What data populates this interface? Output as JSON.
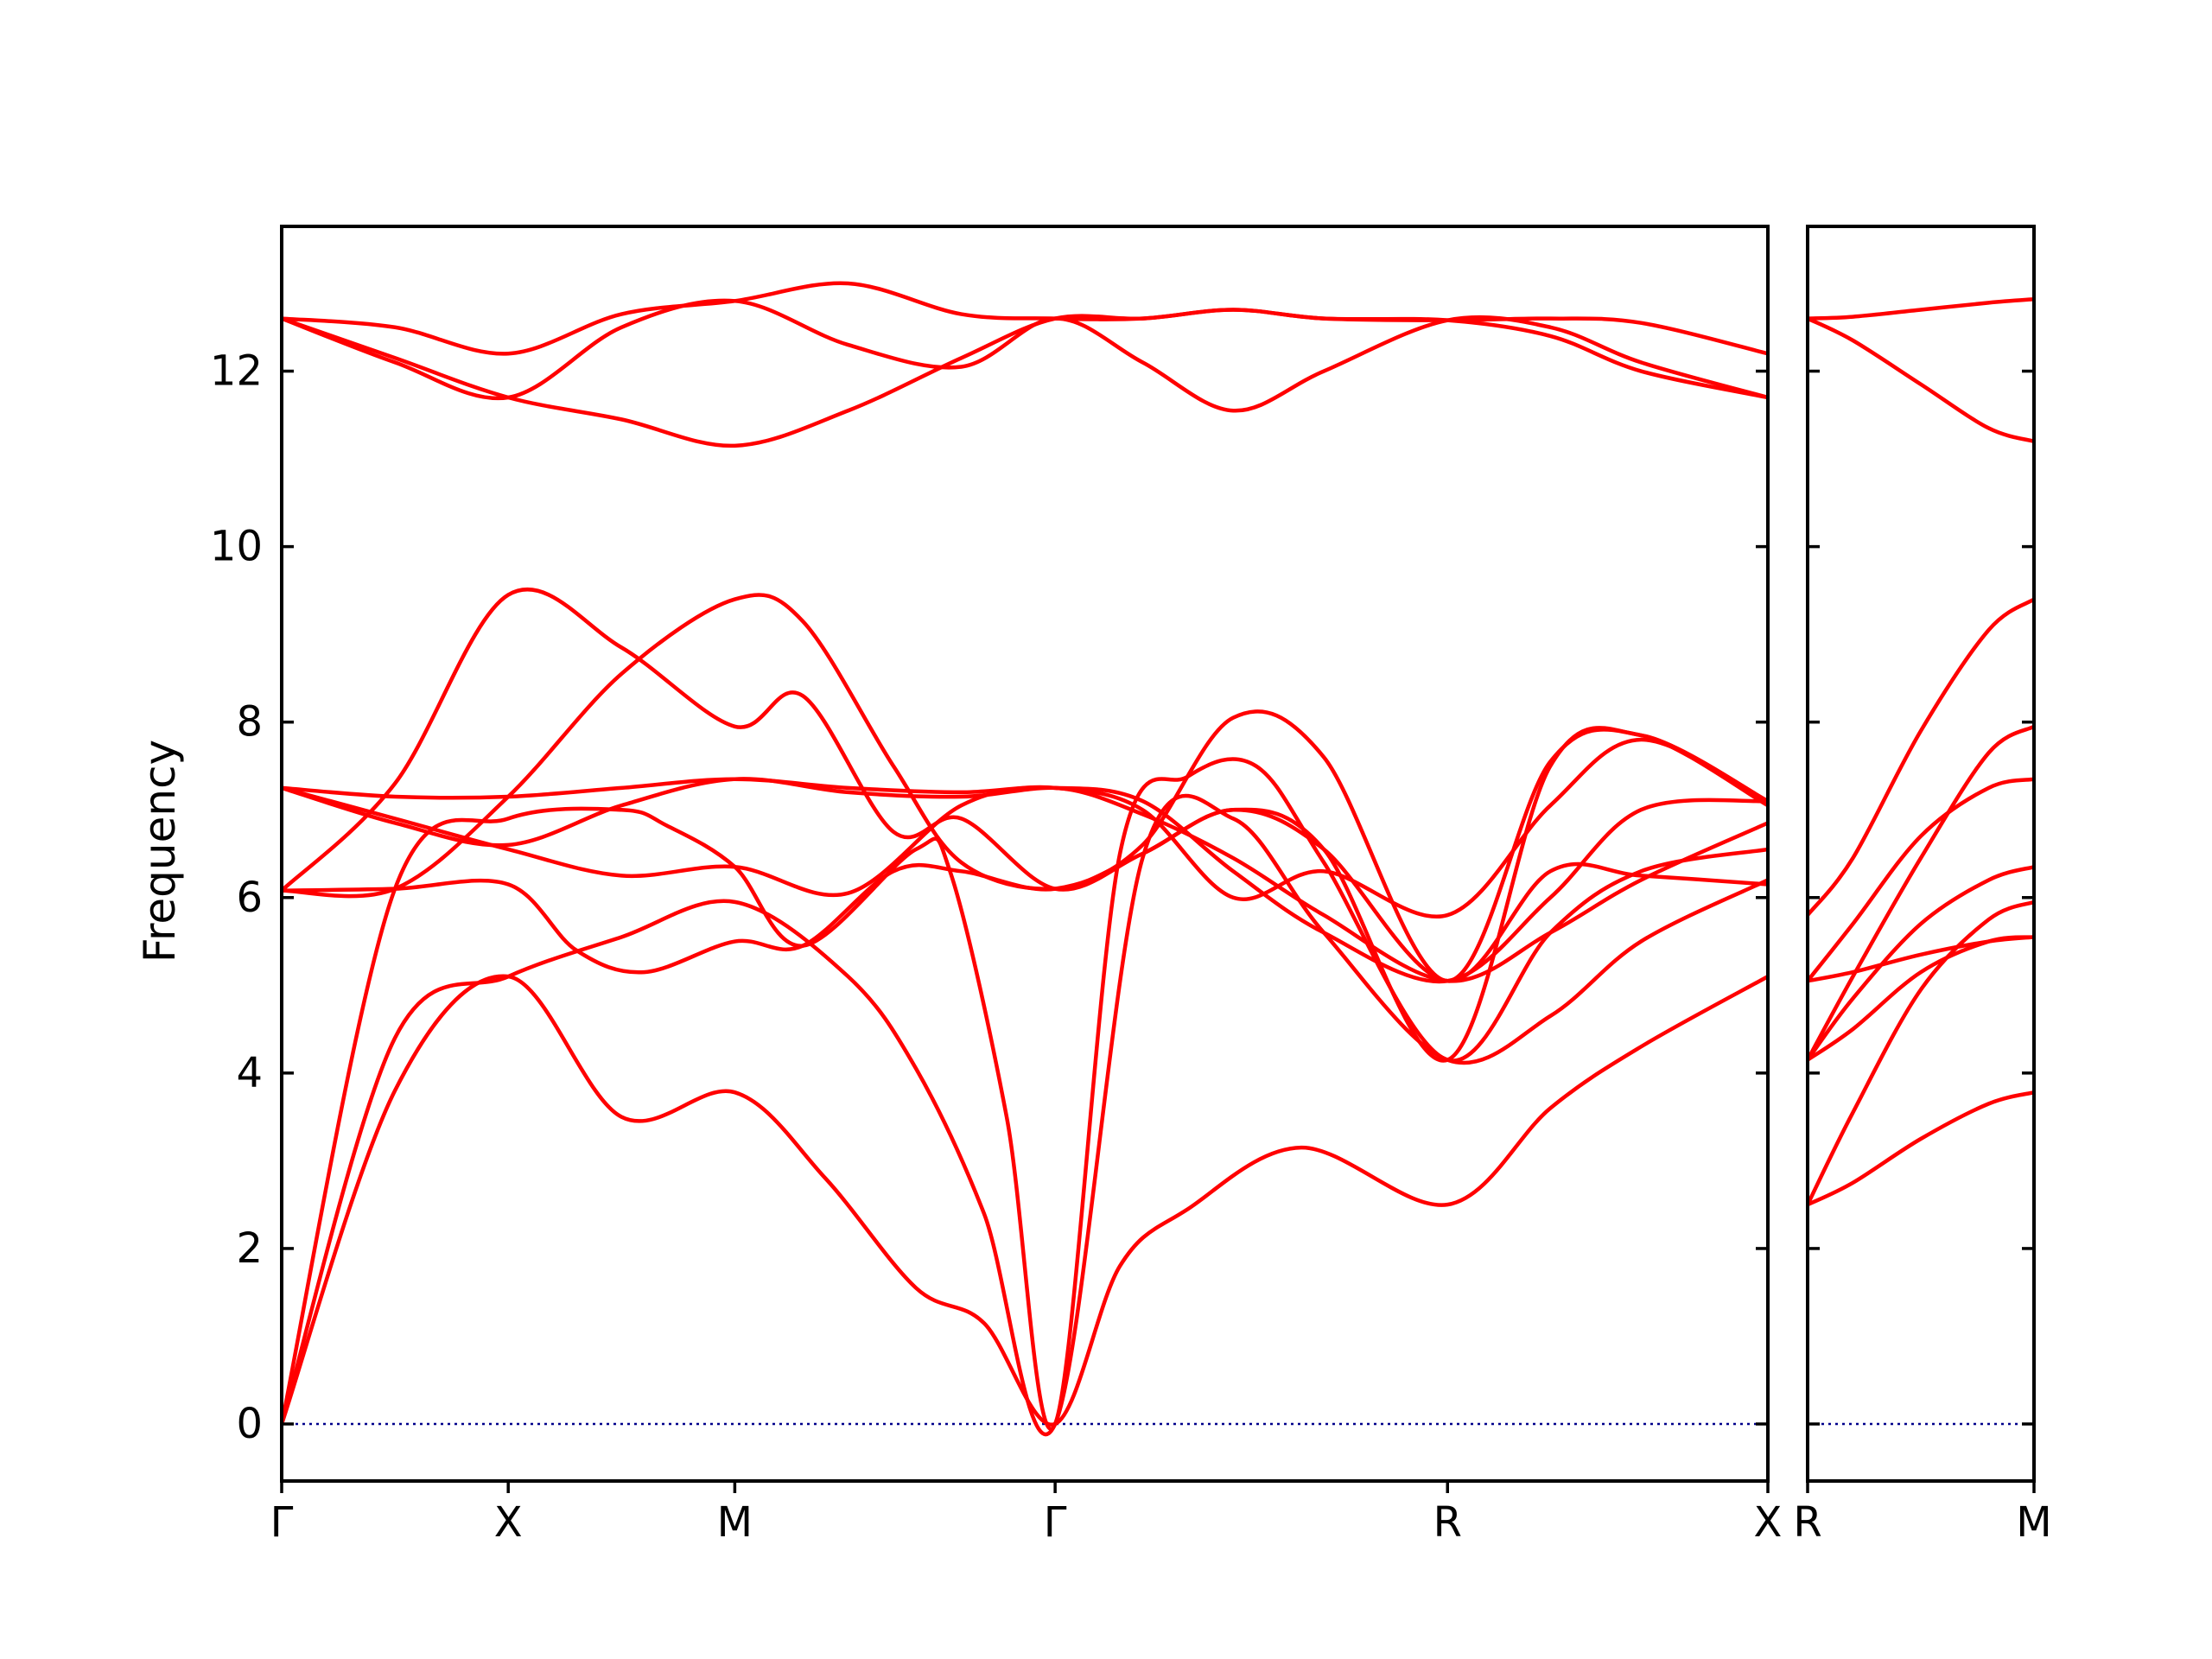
{
  "chart_data": {
    "type": "line",
    "title": "",
    "xlabel": "",
    "ylabel": "Frequency",
    "ylim": [
      -0.65,
      13.65
    ],
    "grid": false,
    "legend": "none",
    "colors": {
      "bands": "#ff0000",
      "zero_line": "#00008b",
      "axes": "#000000"
    },
    "yticks": [
      0,
      2,
      4,
      6,
      8,
      10,
      12
    ],
    "ytick_labels": [
      "0",
      "2",
      "4",
      "6",
      "8",
      "10",
      "12"
    ],
    "panels": [
      {
        "path": [
          "Γ",
          "X",
          "M",
          "Γ",
          "R",
          "X"
        ],
        "x_ticks": [
          0,
          1,
          2,
          3.414,
          5.146,
          6.56
        ],
        "tick_labels": [
          "Γ",
          "X",
          "M",
          "Γ",
          "R",
          "X"
        ],
        "xlim": [
          0,
          6.56
        ],
        "zero_line": true,
        "series": [
          {
            "x": [
              0,
              0.5,
              1,
              1.5,
              2,
              2.4,
              2.8,
              3.1,
              3.414,
              3.7,
              4,
              4.5,
              5.146,
              5.6,
              6,
              6.56
            ],
            "y": [
              0,
              3.8,
              5.1,
              3.5,
              3.78,
              2.8,
              1.55,
              1.15,
              0,
              1.8,
              2.45,
              3.15,
              2.5,
              3.6,
              4.3,
              5.1
            ]
          },
          {
            "x": [
              0,
              0.5,
              1,
              1.5,
              2,
              2.5,
              2.8,
              3.1,
              3.414,
              3.8,
              4.2,
              4.6,
              5.146,
              5.6,
              6,
              6.56
            ],
            "y": [
              0,
              4.4,
              5.1,
              5.55,
              5.95,
              5.1,
              4.05,
              2.4,
              0,
              6.45,
              6.9,
              5.6,
              4.15,
              4.65,
              5.5,
              6.2
            ]
          },
          {
            "x": [
              0,
              0.5,
              1,
              1.5,
              1.7,
              2,
              2.3,
              2.8,
              2.95,
              3.2,
              3.414,
              3.7,
              4,
              4.3,
              4.6,
              5.146,
              5.6,
              6,
              6.56
            ],
            "y": [
              0,
              6.1,
              6.9,
              7.0,
              6.82,
              6.35,
              5.45,
              6.55,
              6.3,
              3.5,
              0,
              6.5,
              7.38,
              7.5,
              6.4,
              4.15,
              5.6,
              6.3,
              6.55
            ]
          },
          {
            "x": [
              0,
              0.5,
              1,
              1.3,
              1.6,
              2,
              2.3,
              2.7,
              3,
              3.414,
              3.8,
              4.2,
              4.6,
              5.146,
              5.6,
              6,
              6.56
            ],
            "y": [
              6.08,
              6.1,
              6.15,
              5.4,
              5.15,
              5.5,
              5.45,
              6.3,
              6.3,
              6.1,
              6.6,
              8.05,
              7.6,
              5.05,
              7.55,
              7.85,
              7.05
            ]
          },
          {
            "x": [
              0,
              0.5,
              1,
              1.5,
              2,
              2.3,
              2.7,
              3,
              3.414,
              3.8,
              4.2,
              4.6,
              5.146,
              5.6,
              6,
              6.56
            ],
            "y": [
              6.08,
              7.3,
              9.45,
              8.85,
              7.95,
              8.3,
              6.75,
              6.9,
              6.1,
              6.5,
              7.0,
              6.55,
              4.15,
              7.5,
              7.85,
              7.1
            ]
          },
          {
            "x": [
              0,
              0.5,
              1,
              1.5,
              2,
              2.3,
              2.7,
              3,
              3.414,
              3.8,
              4.2,
              4.6,
              5.146,
              5.6,
              6,
              6.56
            ],
            "y": [
              6.08,
              6.1,
              7.15,
              8.55,
              9.4,
              9.15,
              7.5,
              6.4,
              6.1,
              6.5,
              7.0,
              6.55,
              5.05,
              6.3,
              6.25,
              6.15
            ]
          },
          {
            "x": [
              0,
              0.5,
              1,
              1.5,
              2,
              2.5,
              3,
              3.414,
              3.8,
              4.2,
              4.6,
              5.146,
              5.6,
              6,
              6.56
            ],
            "y": [
              7.25,
              6.9,
              6.55,
              6.25,
              6.35,
              6.05,
              7.05,
              7.25,
              6.95,
              6.45,
              5.8,
              5.05,
              5.6,
              6.2,
              6.85
            ]
          },
          {
            "x": [
              0,
              0.5,
              1,
              1.5,
              2,
              2.5,
              3,
              3.414,
              3.8,
              4.2,
              4.6,
              5.146,
              5.6,
              6,
              6.56
            ],
            "y": [
              7.25,
              6.85,
              6.6,
              7.05,
              7.35,
              7.2,
              7.15,
              7.25,
              7.1,
              6.3,
              5.6,
              5.05,
              6.0,
              7.0,
              7.1
            ]
          },
          {
            "x": [
              0,
              0.5,
              1,
              1.5,
              2,
              2.5,
              3,
              3.414,
              3.8,
              4.2,
              4.6,
              5.146,
              5.6,
              6,
              6.56
            ],
            "y": [
              7.25,
              7.15,
              7.15,
              7.25,
              7.35,
              7.25,
              7.2,
              7.25,
              7.0,
              6.0,
              6.3,
              5.8,
              7.05,
              7.8,
              7.1
            ]
          },
          {
            "x": [
              0,
              0.5,
              1,
              1.5,
              2,
              2.5,
              3,
              3.414,
              3.8,
              4.2,
              4.6,
              5.146,
              5.6,
              6,
              6.56
            ],
            "y": [
              12.6,
              12.5,
              12.2,
              12.65,
              12.8,
              13.0,
              12.65,
              12.6,
              12.6,
              12.7,
              12.6,
              12.58,
              12.6,
              12.55,
              12.2
            ]
          },
          {
            "x": [
              0,
              0.5,
              1,
              1.5,
              2,
              2.5,
              3,
              3.414,
              3.8,
              4.2,
              4.6,
              5.146,
              5.6,
              6,
              6.56
            ],
            "y": [
              12.6,
              12.1,
              11.7,
              12.5,
              12.8,
              12.3,
              12.05,
              12.6,
              12.1,
              11.55,
              12.0,
              12.58,
              12.5,
              12.1,
              11.7
            ]
          },
          {
            "x": [
              0,
              0.5,
              1,
              1.5,
              2,
              2.5,
              3,
              3.414,
              3.8,
              4.2,
              4.6,
              5.146,
              5.6,
              6,
              6.56
            ],
            "y": [
              12.6,
              12.15,
              11.7,
              11.45,
              11.15,
              11.55,
              12.15,
              12.6,
              12.6,
              12.7,
              12.6,
              12.58,
              12.4,
              12.0,
              11.7
            ]
          }
        ]
      },
      {
        "path": [
          "R",
          "M"
        ],
        "x_ticks": [
          0,
          1
        ],
        "tick_labels": [
          "R",
          "M"
        ],
        "xlim": [
          0,
          1
        ],
        "zero_line": true,
        "series": [
          {
            "x": [
              0,
              0.2,
              0.5,
              0.8,
              1
            ],
            "y": [
              2.5,
              2.75,
              3.25,
              3.65,
              3.78
            ]
          },
          {
            "x": [
              0,
              0.2,
              0.5,
              0.8,
              1
            ],
            "y": [
              2.5,
              3.55,
              4.95,
              5.75,
              5.95
            ]
          },
          {
            "x": [
              0,
              0.2,
              0.5,
              0.8,
              1
            ],
            "y": [
              4.15,
              4.5,
              5.15,
              5.5,
              5.55
            ]
          },
          {
            "x": [
              0,
              0.2,
              0.5,
              0.8,
              1
            ],
            "y": [
              4.15,
              4.85,
              5.7,
              6.2,
              6.35
            ]
          },
          {
            "x": [
              0,
              0.2,
              0.5,
              0.8,
              1
            ],
            "y": [
              4.15,
              5.1,
              6.45,
              7.65,
              7.95
            ]
          },
          {
            "x": [
              0,
              0.2,
              0.5,
              0.8,
              1
            ],
            "y": [
              5.05,
              5.15,
              5.35,
              5.5,
              5.55
            ]
          },
          {
            "x": [
              0,
              0.2,
              0.5,
              0.8,
              1
            ],
            "y": [
              5.05,
              5.7,
              6.7,
              7.25,
              7.35
            ]
          },
          {
            "x": [
              0,
              0.2,
              0.5,
              0.8,
              1
            ],
            "y": [
              5.8,
              6.45,
              7.9,
              9.05,
              9.4
            ]
          },
          {
            "x": [
              0,
              0.2,
              0.5,
              0.8,
              1
            ],
            "y": [
              12.6,
              12.62,
              12.7,
              12.78,
              12.82
            ]
          },
          {
            "x": [
              0,
              0.2,
              0.5,
              0.8,
              1
            ],
            "y": [
              12.6,
              12.35,
              11.85,
              11.35,
              11.2
            ]
          }
        ]
      }
    ]
  }
}
